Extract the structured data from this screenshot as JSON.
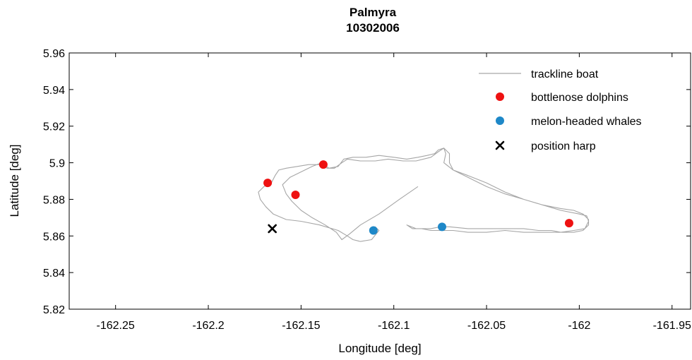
{
  "chart_data": {
    "type": "scatter",
    "title": "Palmyra",
    "subtitle": "10302006",
    "xlabel": "Longitude [deg]",
    "ylabel": "Latitude [deg]",
    "xlim": [
      -162.275,
      -161.94
    ],
    "ylim": [
      5.82,
      5.96
    ],
    "xticks": [
      -162.25,
      -162.2,
      -162.15,
      -162.1,
      -162.05,
      -162,
      -161.95
    ],
    "xtick_labels": [
      "-162.25",
      "-162.2",
      "-162.15",
      "-162.1",
      "-162.05",
      "-162",
      "-161.95"
    ],
    "yticks": [
      5.82,
      5.84,
      5.86,
      5.88,
      5.9,
      5.92,
      5.94,
      5.96
    ],
    "ytick_labels": [
      "5.82",
      "5.84",
      "5.86",
      "5.88",
      "5.9",
      "5.92",
      "5.94",
      "5.96"
    ],
    "grid": false,
    "legend_position": "top-right",
    "series": [
      {
        "name": "trackline boat",
        "kind": "line",
        "color": "#a6a6a6",
        "points": [
          [
            -162.087,
            5.887
          ],
          [
            -162.097,
            5.88
          ],
          [
            -162.108,
            5.872
          ],
          [
            -162.118,
            5.866
          ],
          [
            -162.124,
            5.861
          ],
          [
            -162.128,
            5.858
          ],
          [
            -162.131,
            5.862
          ],
          [
            -162.137,
            5.866
          ],
          [
            -162.144,
            5.87
          ],
          [
            -162.15,
            5.874
          ],
          [
            -162.155,
            5.879
          ],
          [
            -162.158,
            5.883
          ],
          [
            -162.16,
            5.888
          ],
          [
            -162.156,
            5.892
          ],
          [
            -162.15,
            5.895
          ],
          [
            -162.144,
            5.898
          ],
          [
            -162.139,
            5.9
          ],
          [
            -162.135,
            5.897
          ],
          [
            -162.13,
            5.898
          ],
          [
            -162.127,
            5.902
          ],
          [
            -162.122,
            5.903
          ],
          [
            -162.115,
            5.903
          ],
          [
            -162.108,
            5.904
          ],
          [
            -162.1,
            5.903
          ],
          [
            -162.093,
            5.902
          ],
          [
            -162.087,
            5.903
          ],
          [
            -162.082,
            5.904
          ],
          [
            -162.078,
            5.905
          ],
          [
            -162.076,
            5.907
          ],
          [
            -162.073,
            5.908
          ],
          [
            -162.072,
            5.905
          ],
          [
            -162.073,
            5.9
          ],
          [
            -162.068,
            5.896
          ],
          [
            -162.06,
            5.893
          ],
          [
            -162.05,
            5.889
          ],
          [
            -162.04,
            5.884
          ],
          [
            -162.03,
            5.88
          ],
          [
            -162.02,
            5.877
          ],
          [
            -162.01,
            5.875
          ],
          [
            -162.003,
            5.874
          ],
          [
            -161.998,
            5.872
          ],
          [
            -161.995,
            5.869
          ],
          [
            -161.995,
            5.866
          ],
          [
            -161.998,
            5.863
          ],
          [
            -162.003,
            5.862
          ],
          [
            -162.01,
            5.862
          ],
          [
            -162.015,
            5.863
          ],
          [
            -162.022,
            5.863
          ],
          [
            -162.03,
            5.864
          ],
          [
            -162.04,
            5.864
          ],
          [
            -162.05,
            5.864
          ],
          [
            -162.06,
            5.864
          ],
          [
            -162.07,
            5.865
          ],
          [
            -162.075,
            5.865
          ],
          [
            -162.08,
            5.864
          ],
          [
            -162.088,
            5.864
          ],
          [
            -162.093,
            5.866
          ],
          [
            -162.09,
            5.864
          ],
          [
            -162.085,
            5.864
          ],
          [
            -162.08,
            5.863
          ],
          [
            -162.075,
            5.863
          ],
          [
            -162.068,
            5.863
          ],
          [
            -162.06,
            5.862
          ],
          [
            -162.05,
            5.862
          ],
          [
            -162.04,
            5.863
          ],
          [
            -162.03,
            5.862
          ],
          [
            -162.02,
            5.862
          ],
          [
            -162.01,
            5.862
          ],
          [
            -162.003,
            5.863
          ],
          [
            -161.997,
            5.864
          ],
          [
            -161.995,
            5.868
          ],
          [
            -161.996,
            5.871
          ],
          [
            -162.0,
            5.872
          ],
          [
            -162.01,
            5.874
          ],
          [
            -162.02,
            5.877
          ],
          [
            -162.03,
            5.88
          ],
          [
            -162.04,
            5.883
          ],
          [
            -162.05,
            5.887
          ],
          [
            -162.06,
            5.892
          ],
          [
            -162.068,
            5.896
          ],
          [
            -162.07,
            5.9
          ],
          [
            -162.07,
            5.905
          ],
          [
            -162.073,
            5.908
          ],
          [
            -162.076,
            5.906
          ],
          [
            -162.08,
            5.903
          ],
          [
            -162.088,
            5.901
          ],
          [
            -162.095,
            5.901
          ],
          [
            -162.103,
            5.902
          ],
          [
            -162.11,
            5.901
          ],
          [
            -162.118,
            5.901
          ],
          [
            -162.125,
            5.902
          ],
          [
            -162.128,
            5.9
          ],
          [
            -162.132,
            5.897
          ],
          [
            -162.136,
            5.897
          ],
          [
            -162.14,
            5.899
          ],
          [
            -162.146,
            5.899
          ],
          [
            -162.152,
            5.898
          ],
          [
            -162.158,
            5.897
          ],
          [
            -162.162,
            5.896
          ],
          [
            -162.164,
            5.893
          ],
          [
            -162.166,
            5.889
          ],
          [
            -162.17,
            5.887
          ],
          [
            -162.173,
            5.884
          ],
          [
            -162.172,
            5.88
          ],
          [
            -162.169,
            5.876
          ],
          [
            -162.165,
            5.872
          ],
          [
            -162.158,
            5.869
          ],
          [
            -162.15,
            5.868
          ],
          [
            -162.14,
            5.866
          ],
          [
            -162.13,
            5.863
          ],
          [
            -162.125,
            5.86
          ],
          [
            -162.122,
            5.858
          ],
          [
            -162.118,
            5.857
          ],
          [
            -162.112,
            5.858
          ],
          [
            -162.108,
            5.863
          ],
          [
            -162.11,
            5.865
          ],
          [
            -162.112,
            5.864
          ]
        ]
      },
      {
        "name": "bottlenose dolphins",
        "kind": "marker",
        "marker": "dot",
        "color": "#ee1111",
        "points": [
          [
            -162.168,
            5.889
          ],
          [
            -162.153,
            5.8825
          ],
          [
            -162.138,
            5.899
          ],
          [
            -162.0055,
            5.867
          ]
        ]
      },
      {
        "name": "melon-headed whales",
        "kind": "marker",
        "marker": "dot",
        "color": "#1e88c8",
        "points": [
          [
            -162.111,
            5.863
          ],
          [
            -162.074,
            5.865
          ]
        ]
      },
      {
        "name": "position harp",
        "kind": "marker",
        "marker": "x",
        "color": "#000000",
        "points": [
          [
            -162.1655,
            5.864
          ]
        ]
      }
    ]
  }
}
